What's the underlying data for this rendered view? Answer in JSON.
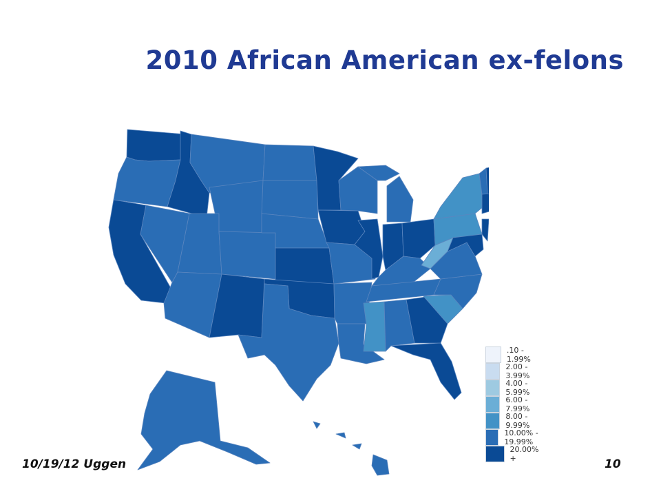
{
  "title": "2010 African American ex-felons",
  "footer": {
    "date_author": "10/19/12 Uggen",
    "page_number": "10"
  },
  "legend": {
    "items": [
      {
        "label": ".10 - 1.99%",
        "color": "#eef3fb"
      },
      {
        "label": "2.00 - 3.99%",
        "color": "#c9dcf0"
      },
      {
        "label": "4.00 - 5.99%",
        "color": "#9ecae1"
      },
      {
        "label": "6.00 - 7.99%",
        "color": "#6baed6"
      },
      {
        "label": "8.00 - 9.99%",
        "color": "#4292c6"
      },
      {
        "label": "10.00% - 19.99%",
        "color": "#2a6db5"
      },
      {
        "label": "20.00% +",
        "color": "#0a4a95"
      }
    ]
  }
}
